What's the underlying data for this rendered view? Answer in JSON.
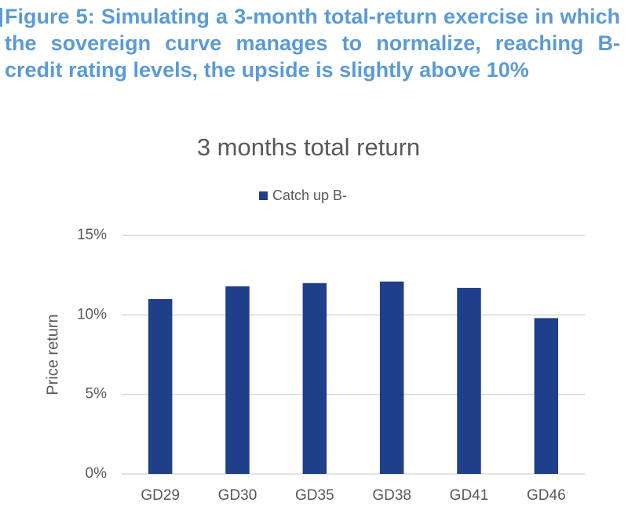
{
  "caption": "Figure 5: Simulating a 3-month total-return exercise in which the sovereign curve manages to normalize, reaching B- credit rating levels, the upside is slightly above 10%",
  "chart_data": {
    "type": "bar",
    "title": "3 months total return",
    "y_label": "Price return",
    "categories": [
      "GD29",
      "GD30",
      "GD35",
      "GD38",
      "GD41",
      "GD46"
    ],
    "series": [
      {
        "name": "Catch up B-",
        "color": "#203f8a",
        "values": [
          11.0,
          11.8,
          12.0,
          12.1,
          11.7,
          9.8
        ]
      }
    ],
    "ylim": [
      0,
      15
    ],
    "yticks": [
      {
        "value": 0,
        "label": "0%"
      },
      {
        "value": 5,
        "label": "5%"
      },
      {
        "value": 10,
        "label": "10%"
      },
      {
        "value": 15,
        "label": "15%"
      }
    ],
    "grid": true,
    "legend": "top"
  }
}
